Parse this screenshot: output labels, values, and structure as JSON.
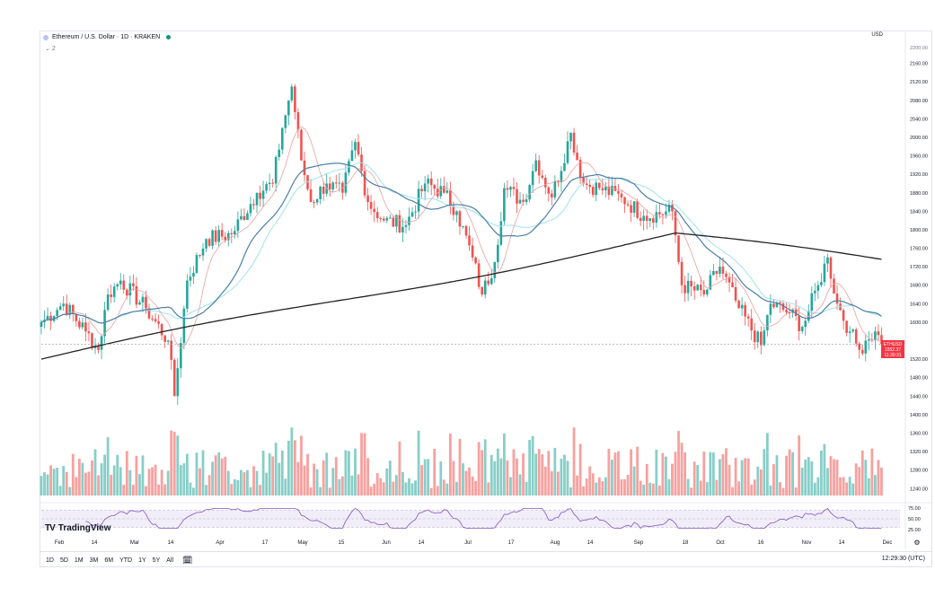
{
  "legend": {
    "title": "Ethereum / U.S. Dollar · 1D · KRAKEN",
    "sub": "2"
  },
  "price_scale": {
    "currency": "USD",
    "top_label": "2200.00"
  },
  "last_price": {
    "symbol": "ETHUSD",
    "value": "1552.37",
    "countdown": "11:30:31"
  },
  "brand": {
    "name": "TradingView",
    "logo": "TV"
  },
  "toolbar": {
    "ranges": [
      "1D",
      "5D",
      "1M",
      "3M",
      "6M",
      "YTD",
      "1Y",
      "5Y",
      "All"
    ],
    "calendar_icon": "calendar-icon",
    "clock": "12:29:30 (UTC)"
  },
  "colors": {
    "up": "#26a69a",
    "down": "#ef5350",
    "ma_short": "#e8a0a0",
    "ma_mid": "#4a7fa7",
    "ma_cyan": "#9fe3ea",
    "ma_long": "#222222",
    "rsi": "#7e57c2",
    "rsi_band": "#ede7f6"
  },
  "chart_data": [
    {
      "type": "candlestick",
      "title": "Ethereum / U.S. Dollar · 1D · KRAKEN",
      "x_axis": {
        "tick_labels": [
          "Feb",
          "14",
          "Mar",
          "14",
          "Apr",
          "17",
          "May",
          "15",
          "Jun",
          "14",
          "Jul",
          "17",
          "Aug",
          "14",
          "Sep",
          "18",
          "Oct",
          "16",
          "Nov",
          "14",
          "Dec"
        ]
      },
      "y_axis": {
        "tick_labels": [
          "2160.00",
          "2120.00",
          "2080.00",
          "2040.00",
          "2000.00",
          "1960.00",
          "1920.00",
          "1880.00",
          "1840.00",
          "1800.00",
          "1760.00",
          "1720.00",
          "1680.00",
          "1640.00",
          "1600.00",
          "1520.00",
          "1480.00",
          "1440.00",
          "1400.00",
          "1360.00",
          "1320.00",
          "1280.00",
          "1240.00"
        ],
        "range": [
          1225,
          2200
        ]
      },
      "series": [
        {
          "name": "Price",
          "kind": "ohlc",
          "anchors": [
            [
              "Jan 27",
              1600
            ],
            [
              "Feb 3",
              1640
            ],
            [
              "Feb 10",
              1580
            ],
            [
              "Feb 14",
              1540
            ],
            [
              "Feb 17",
              1660
            ],
            [
              "Feb 21",
              1690
            ],
            [
              "Mar 1",
              1630
            ],
            [
              "Mar 8",
              1560
            ],
            [
              "Mar 10",
              1440
            ],
            [
              "Mar 14",
              1690
            ],
            [
              "Mar 20",
              1780
            ],
            [
              "Mar 28",
              1790
            ],
            [
              "Apr 5",
              1880
            ],
            [
              "Apr 10",
              1900
            ],
            [
              "Apr 13",
              2020
            ],
            [
              "Apr 16",
              2110
            ],
            [
              "Apr 19",
              1950
            ],
            [
              "Apr 22",
              1860
            ],
            [
              "Apr 27",
              1900
            ],
            [
              "May 2",
              1880
            ],
            [
              "May 6",
              1990
            ],
            [
              "May 10",
              1860
            ],
            [
              "May 15",
              1820
            ],
            [
              "May 22",
              1810
            ],
            [
              "May 28",
              1900
            ],
            [
              "Jun 3",
              1880
            ],
            [
              "Jun 7",
              1840
            ],
            [
              "Jun 12",
              1740
            ],
            [
              "Jun 15",
              1660
            ],
            [
              "Jun 19",
              1730
            ],
            [
              "Jun 22",
              1890
            ],
            [
              "Jun 28",
              1860
            ],
            [
              "Jul 2",
              1950
            ],
            [
              "Jul 7",
              1870
            ],
            [
              "Jul 13",
              2010
            ],
            [
              "Jul 17",
              1900
            ],
            [
              "Jul 22",
              1890
            ],
            [
              "Jul 29",
              1870
            ],
            [
              "Aug 5",
              1830
            ],
            [
              "Aug 14",
              1840
            ],
            [
              "Aug 17",
              1680
            ],
            [
              "Aug 24",
              1660
            ],
            [
              "Aug 29",
              1720
            ],
            [
              "Sep 4",
              1630
            ],
            [
              "Sep 11",
              1550
            ],
            [
              "Sep 14",
              1640
            ],
            [
              "Sep 20",
              1620
            ],
            [
              "Sep 24",
              1590
            ],
            [
              "Sep 29",
              1680
            ],
            [
              "Oct 2",
              1740
            ],
            [
              "Oct 5",
              1640
            ],
            [
              "Oct 9",
              1580
            ],
            [
              "Oct 12",
              1540
            ],
            [
              "Oct 14",
              1560
            ],
            [
              "Oct 17",
              1580
            ],
            [
              "Oct 19",
              1552.37
            ]
          ]
        },
        {
          "name": "Volume",
          "kind": "histogram",
          "note": "relative daily volume, colored by candle direction"
        },
        {
          "name": "RSI",
          "kind": "line",
          "range": [
            25,
            75
          ],
          "tick_labels": [
            "75.00",
            "50.00",
            "25.00"
          ],
          "band": [
            30,
            70
          ]
        }
      ],
      "moving_averages": [
        "short (pink)",
        "mid (steel blue)",
        "cyan",
        "long (black)"
      ],
      "grid": false,
      "last_price": 1552.37
    }
  ]
}
